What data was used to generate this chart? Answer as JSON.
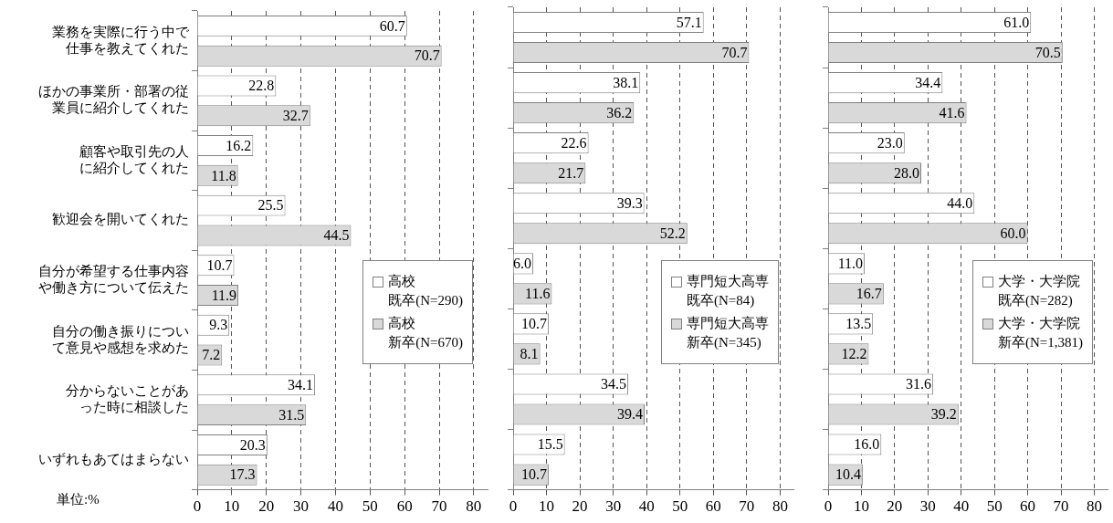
{
  "chart_data": [
    {
      "type": "bar",
      "orientation": "horizontal",
      "categories": [
        "業務を実際に行う中で仕事を教えてくれた",
        "ほかの事業所・部署の従業員に紹介してくれた",
        "顧客や取引先の人に紹介してくれた",
        "歓迎会を開いてくれた",
        "自分が希望する仕事内容や働き方について伝えた",
        "自分の働き振りについて意見や感想を求めた",
        "分からないことがあった時に相談した",
        "いずれもあてはまらない"
      ],
      "series": [
        {
          "name": "高校既卒(N=290)",
          "color": "#ffffff",
          "values": [
            60.7,
            22.8,
            16.2,
            25.5,
            10.7,
            9.3,
            34.1,
            20.3
          ],
          "value_labels": [
            "60.7",
            "22.8",
            "16.2",
            "25.5",
            "10.7",
            "9.3",
            "34.1",
            "20.3"
          ]
        },
        {
          "name": "高校新卒(N=670)",
          "color": "#d9d9d9",
          "values": [
            70.7,
            32.7,
            11.8,
            44.5,
            11.9,
            7.2,
            31.5,
            17.3
          ],
          "value_labels": [
            "70.7",
            "32.7",
            "11.8",
            "44.5",
            "11.9",
            "7.2",
            "31.5",
            "17.3"
          ]
        }
      ],
      "xlim": [
        0,
        84
      ],
      "xticks": [
        0,
        10,
        20,
        30,
        40,
        50,
        60,
        70,
        80
      ],
      "grid": "x",
      "legend": "right",
      "annotations": [
        "単位:%"
      ]
    },
    {
      "type": "bar",
      "orientation": "horizontal",
      "categories": [
        null,
        null,
        null,
        null,
        null,
        null,
        null,
        null
      ],
      "series": [
        {
          "name": "専門短大高専既卒(N=84)",
          "color": "#ffffff",
          "values": [
            57.1,
            38.1,
            22.6,
            39.3,
            6.0,
            10.7,
            34.5,
            15.5
          ],
          "value_labels": [
            "57.1",
            "38.1",
            "22.6",
            "39.3",
            "6.0",
            "10.7",
            "34.5",
            "15.5"
          ]
        },
        {
          "name": "専門短大高専新卒(N=345)",
          "color": "#d9d9d9",
          "values": [
            70.7,
            36.2,
            21.7,
            52.2,
            11.6,
            8.1,
            39.4,
            10.7
          ],
          "value_labels": [
            "70.7",
            "36.2",
            "21.7",
            "52.2",
            "11.6",
            "8.1",
            "39.4",
            "10.7"
          ]
        }
      ],
      "xlim": [
        0,
        84
      ],
      "xticks": [
        0,
        10,
        20,
        30,
        40,
        50,
        60,
        70,
        80
      ],
      "grid": "x",
      "legend": "right",
      "tick_labels": "x"
    },
    {
      "type": "bar",
      "orientation": "horizontal",
      "categories": [
        null,
        null,
        null,
        null,
        null,
        null,
        null,
        null
      ],
      "series": [
        {
          "name": "大学・大学院既卒(N=282)",
          "color": "#ffffff",
          "values": [
            61.0,
            34.4,
            23.0,
            44.0,
            11.0,
            13.5,
            31.6,
            16.0
          ],
          "value_labels": [
            "61.0",
            "34.4",
            "23.0",
            "44.0",
            "11.0",
            "13.5",
            "31.6",
            "16.0"
          ]
        },
        {
          "name": "大学・大学院新卒(N=1,381)",
          "color": "#d9d9d9",
          "values": [
            70.5,
            41.6,
            28.0,
            60.0,
            16.7,
            12.2,
            39.2,
            10.4
          ],
          "value_labels": [
            "70.5",
            "41.6",
            "28.0",
            "60.0",
            "16.7",
            "12.2",
            "39.2",
            "10.4"
          ]
        }
      ],
      "xlim": [
        0,
        84
      ],
      "xticks": [
        0,
        10,
        20,
        30,
        40,
        50,
        60,
        70,
        80
      ],
      "grid": "x",
      "legend": "right",
      "tick_labels": "x"
    }
  ]
}
